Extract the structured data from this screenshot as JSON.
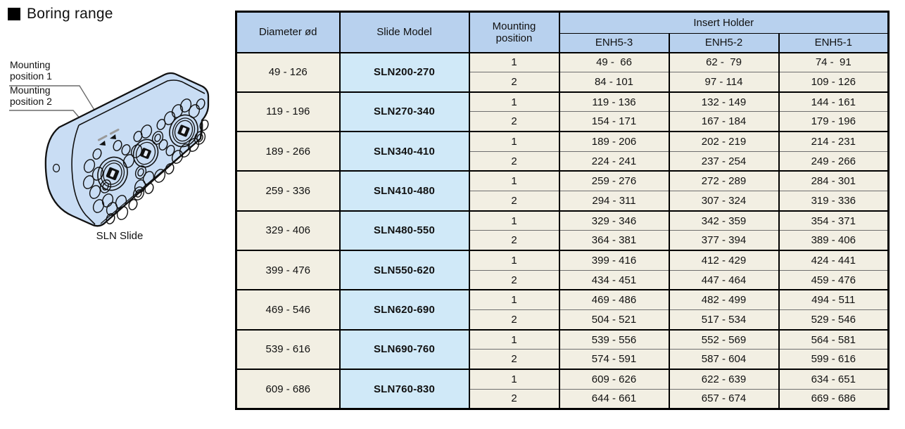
{
  "page": {
    "title": "Boring range"
  },
  "diagram": {
    "label_position_1": "Mounting position 1",
    "label_position_2": "Mounting position 2",
    "caption": "SLN Slide"
  },
  "colors": {
    "header_blue": "#b8d1ee",
    "model_cell_blue": "#d0e9f8",
    "data_cell_cream": "#f2efe3",
    "slide_body_blue": "#c9ddf4",
    "border_black": "#000000",
    "inner_rule_gray": "#6e6e6e"
  },
  "table": {
    "headers": {
      "diameter": "Diameter ød",
      "slide_model": "Slide Model",
      "mounting_position": "Mounting position",
      "insert_holder": "Insert Holder",
      "enh_columns": [
        "ENH5-3",
        "ENH5-2",
        "ENH5-1"
      ]
    },
    "rows": [
      {
        "diameter": "49 - 126",
        "slide_model": "SLN200-270",
        "positions": [
          {
            "position": "1",
            "enh5_3": "49 -  66",
            "enh5_2": "62 -  79",
            "enh5_1": "74 -  91"
          },
          {
            "position": "2",
            "enh5_3": "84 - 101",
            "enh5_2": "97 - 114",
            "enh5_1": "109 - 126"
          }
        ]
      },
      {
        "diameter": "119 - 196",
        "slide_model": "SLN270-340",
        "positions": [
          {
            "position": "1",
            "enh5_3": "119 - 136",
            "enh5_2": "132 - 149",
            "enh5_1": "144 - 161"
          },
          {
            "position": "2",
            "enh5_3": "154 - 171",
            "enh5_2": "167 - 184",
            "enh5_1": "179 - 196"
          }
        ]
      },
      {
        "diameter": "189 - 266",
        "slide_model": "SLN340-410",
        "positions": [
          {
            "position": "1",
            "enh5_3": "189 - 206",
            "enh5_2": "202 - 219",
            "enh5_1": "214 - 231"
          },
          {
            "position": "2",
            "enh5_3": "224 - 241",
            "enh5_2": "237 - 254",
            "enh5_1": "249 - 266"
          }
        ]
      },
      {
        "diameter": "259 - 336",
        "slide_model": "SLN410-480",
        "positions": [
          {
            "position": "1",
            "enh5_3": "259 - 276",
            "enh5_2": "272 - 289",
            "enh5_1": "284 - 301"
          },
          {
            "position": "2",
            "enh5_3": "294 - 311",
            "enh5_2": "307 - 324",
            "enh5_1": "319 - 336"
          }
        ]
      },
      {
        "diameter": "329 - 406",
        "slide_model": "SLN480-550",
        "positions": [
          {
            "position": "1",
            "enh5_3": "329 - 346",
            "enh5_2": "342 - 359",
            "enh5_1": "354 - 371"
          },
          {
            "position": "2",
            "enh5_3": "364 - 381",
            "enh5_2": "377 - 394",
            "enh5_1": "389 - 406"
          }
        ]
      },
      {
        "diameter": "399 - 476",
        "slide_model": "SLN550-620",
        "positions": [
          {
            "position": "1",
            "enh5_3": "399 - 416",
            "enh5_2": "412 - 429",
            "enh5_1": "424 - 441"
          },
          {
            "position": "2",
            "enh5_3": "434 - 451",
            "enh5_2": "447 - 464",
            "enh5_1": "459 - 476"
          }
        ]
      },
      {
        "diameter": "469 - 546",
        "slide_model": "SLN620-690",
        "positions": [
          {
            "position": "1",
            "enh5_3": "469 - 486",
            "enh5_2": "482 - 499",
            "enh5_1": "494 - 511"
          },
          {
            "position": "2",
            "enh5_3": "504 - 521",
            "enh5_2": "517 - 534",
            "enh5_1": "529 - 546"
          }
        ]
      },
      {
        "diameter": "539 - 616",
        "slide_model": "SLN690-760",
        "positions": [
          {
            "position": "1",
            "enh5_3": "539 - 556",
            "enh5_2": "552 - 569",
            "enh5_1": "564 - 581"
          },
          {
            "position": "2",
            "enh5_3": "574 - 591",
            "enh5_2": "587 - 604",
            "enh5_1": "599 - 616"
          }
        ]
      },
      {
        "diameter": "609 - 686",
        "slide_model": "SLN760-830",
        "positions": [
          {
            "position": "1",
            "enh5_3": "609 - 626",
            "enh5_2": "622 - 639",
            "enh5_1": "634 - 651"
          },
          {
            "position": "2",
            "enh5_3": "644 - 661",
            "enh5_2": "657 - 674",
            "enh5_1": "669 - 686"
          }
        ]
      }
    ]
  }
}
